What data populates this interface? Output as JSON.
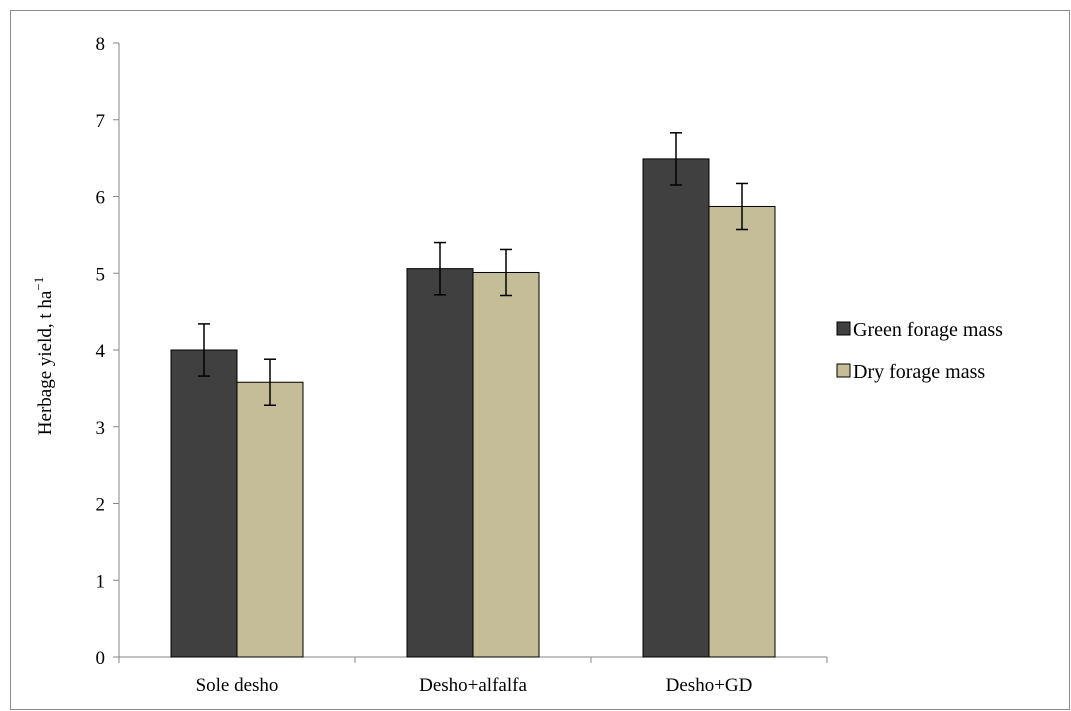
{
  "chart_data": {
    "type": "bar",
    "title": "",
    "xlabel": "",
    "ylabel": "Herbage yield, t ha",
    "ylabel_superscript": "−1",
    "categories": [
      "Sole desho",
      "Desho+alfalfa",
      "Desho+GD"
    ],
    "series": [
      {
        "name": "Green forage mass",
        "color": "#404040",
        "values": [
          4.0,
          5.06,
          6.49
        ],
        "error": [
          0.34,
          0.34,
          0.34
        ]
      },
      {
        "name": "Dry forage mass",
        "color": "#c4bd97",
        "values": [
          3.58,
          5.01,
          5.87
        ],
        "error": [
          0.3,
          0.3,
          0.3
        ]
      }
    ],
    "ylim": [
      0,
      8
    ],
    "yticks": [
      "0",
      "1",
      "2",
      "3",
      "4",
      "5",
      "6",
      "7",
      "8"
    ],
    "grid": false,
    "legend_position": "right"
  }
}
